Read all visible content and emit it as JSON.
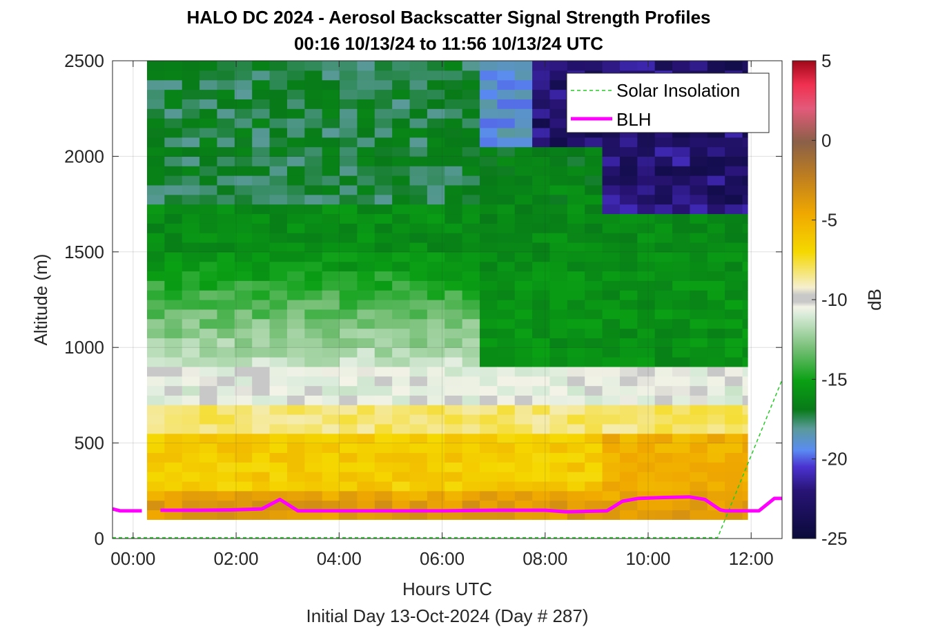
{
  "chart_data": {
    "type": "heatmap",
    "title": "HALO DC 2024 - Aerosol Backscatter Signal Strength Profiles",
    "subtitle": "00:16 10/13/24 to 11:56 10/13/24  UTC",
    "xlabel": "Hours UTC",
    "xlabel2": "Initial Day 13-Oct-2024 (Day # 287)",
    "ylabel": "Altitude (m)",
    "colorbar_label": "dB",
    "xlim": [
      -0.4,
      12.6
    ],
    "ylim": [
      0,
      2500
    ],
    "clim": [
      -25,
      5
    ],
    "x_ticks": [
      {
        "value": 0,
        "label": "00:00"
      },
      {
        "value": 2,
        "label": "02:00"
      },
      {
        "value": 4,
        "label": "04:00"
      },
      {
        "value": 6,
        "label": "06:00"
      },
      {
        "value": 8,
        "label": "08:00"
      },
      {
        "value": 10,
        "label": "10:00"
      },
      {
        "value": 12,
        "label": "12:00"
      }
    ],
    "y_ticks": [
      {
        "value": 0,
        "label": "0"
      },
      {
        "value": 500,
        "label": "500"
      },
      {
        "value": 1000,
        "label": "1000"
      },
      {
        "value": 1500,
        "label": "1500"
      },
      {
        "value": 2000,
        "label": "2000"
      },
      {
        "value": 2500,
        "label": "2500"
      }
    ],
    "colorbar_ticks": [
      {
        "value": 5,
        "label": "5"
      },
      {
        "value": 0,
        "label": "0"
      },
      {
        "value": -5,
        "label": "-5"
      },
      {
        "value": -10,
        "label": "-10"
      },
      {
        "value": -15,
        "label": "-15"
      },
      {
        "value": -20,
        "label": "-20"
      },
      {
        "value": -25,
        "label": "-25"
      }
    ],
    "grid": true,
    "legend_position": "top-right",
    "legend": [
      {
        "name": "Solar Insolation",
        "color": "#22cc22",
        "style": "dashed"
      },
      {
        "name": "BLH",
        "color": "#ff00ff",
        "style": "solid"
      }
    ],
    "profile_time_range": [
      0.27,
      11.93
    ],
    "profile_altitude_range": [
      100,
      2500
    ],
    "grid_resolution": {
      "time_step_h": 0.34,
      "altitude_step_m": 50
    },
    "blh_series": {
      "name": "BLH",
      "x": [
        -0.4,
        -0.25,
        0.17,
        0.53,
        1.3,
        1.9,
        2.5,
        2.85,
        3.2,
        4.0,
        5.0,
        6.0,
        7.0,
        8.0,
        8.4,
        9.2,
        9.5,
        9.8,
        10.3,
        10.8,
        11.1,
        11.4,
        11.5,
        12.15,
        12.45,
        12.6
      ],
      "y": [
        155,
        145,
        145,
        148,
        148,
        150,
        155,
        205,
        145,
        145,
        145,
        145,
        148,
        148,
        140,
        145,
        195,
        210,
        215,
        218,
        205,
        150,
        145,
        145,
        210,
        210
      ],
      "gaps_after_x": [
        0.17
      ]
    },
    "solar_insolation": {
      "name": "Solar Insolation",
      "x": [
        -0.4,
        11.35,
        12.6
      ],
      "y": [
        5,
        5,
        830
      ]
    }
  }
}
